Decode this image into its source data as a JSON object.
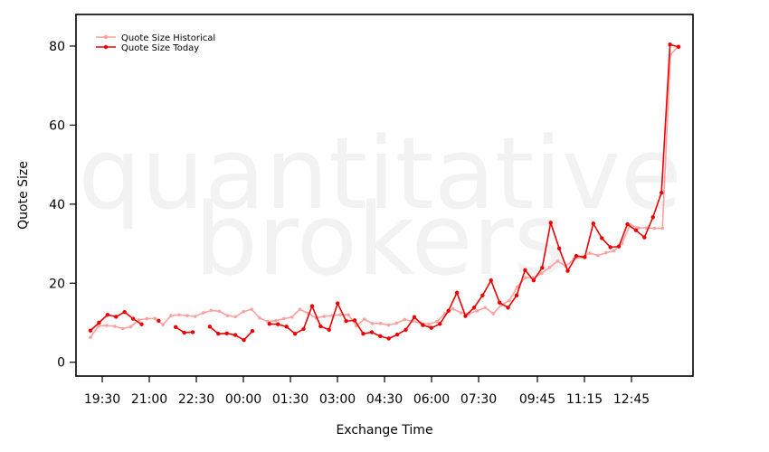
{
  "chart_data": {
    "type": "line",
    "xlabel": "Exchange Time",
    "ylabel": "Quote Size",
    "ylim": [
      -3.5,
      88
    ],
    "y_ticks": [
      0,
      20,
      40,
      60,
      80
    ],
    "x_tick_labels": [
      "19:30",
      "21:00",
      "22:30",
      "00:00",
      "01:30",
      "03:00",
      "04:30",
      "06:00",
      "07:30",
      "09:45",
      "11:15",
      "12:45"
    ],
    "x_tick_slots": [
      1,
      5,
      9,
      13,
      17,
      21,
      25,
      29,
      33,
      38,
      42,
      46
    ],
    "slot_count": 50,
    "watermark": [
      "quantitative",
      "brokers"
    ],
    "legend_position": "top-left",
    "series": [
      {
        "name": "Quote Size Historical",
        "color": "#ffa0a0",
        "values": [
          6.3,
          9.2,
          9.3,
          9.1,
          8.5,
          9.0,
          10.7,
          11.0,
          11.1,
          9.5,
          11.8,
          12.0,
          11.8,
          11.6,
          12.5,
          13.1,
          12.9,
          11.8,
          11.5,
          12.8,
          13.4,
          11.2,
          10.3,
          10.5,
          11.0,
          11.4,
          13.4,
          12.4,
          11.2,
          11.6,
          11.8,
          12.0,
          12.0,
          9.2,
          10.9,
          9.8,
          9.8,
          9.4,
          9.9,
          10.8,
          10.4,
          9.9,
          9.6,
          10.3,
          12.3,
          13.5,
          12.5,
          12.3,
          13.0,
          13.8,
          12.3,
          14.5,
          15.6,
          19.1,
          21.4,
          21.4,
          22.5,
          24.0,
          25.6,
          24.3,
          26.1,
          26.6,
          27.6,
          27.0,
          27.7,
          28.2,
          30.1,
          34.8,
          34.0,
          34.0,
          33.9,
          33.9,
          77.8,
          80.0
        ]
      },
      {
        "name": "Quote Size Today",
        "color": "#ee0000",
        "values": [
          8.0,
          10.0,
          12.0,
          11.5,
          12.7,
          11.0,
          9.6,
          null,
          10.5,
          null,
          8.9,
          7.5,
          7.6,
          null,
          9.0,
          7.2,
          7.3,
          6.9,
          5.6,
          7.9,
          null,
          9.7,
          9.6,
          9.0,
          7.2,
          8.4,
          14.2,
          9.1,
          8.2,
          14.9,
          10.4,
          10.6,
          7.2,
          7.6,
          6.6,
          6.0,
          7.0,
          8.2,
          11.4,
          9.4,
          8.7,
          9.7,
          13.0,
          17.6,
          11.7,
          13.8,
          16.9,
          20.7,
          15.1,
          13.8,
          16.9,
          23.3,
          20.7,
          23.9,
          35.3,
          28.8,
          23.1,
          26.9,
          26.6,
          35.1,
          31.4,
          29.1,
          29.3,
          34.9,
          33.4,
          31.6,
          36.7,
          42.9,
          80.4,
          79.8
        ]
      }
    ]
  }
}
